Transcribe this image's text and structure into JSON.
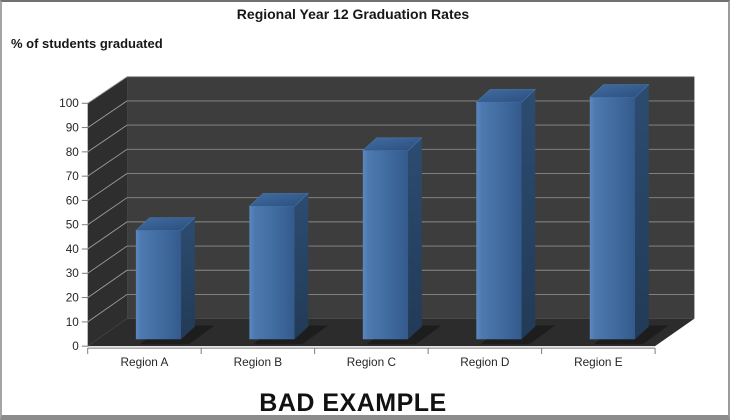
{
  "chart_data": {
    "type": "bar",
    "subtype": "3d-column",
    "title": "Regional Year 12 Graduation Rates",
    "ylabel": "% of students graduated",
    "caption": "BAD EXAMPLE",
    "categories": [
      "Region A",
      "Region B",
      "Region C",
      "Region D",
      "Region E"
    ],
    "values": [
      45,
      55,
      78,
      98,
      100
    ],
    "y_ticks": [
      0,
      10,
      20,
      30,
      40,
      50,
      60,
      70,
      80,
      90,
      100
    ],
    "ylim": [
      0,
      100
    ],
    "grid": true,
    "legend": "none",
    "colors": {
      "bar_front_light": "#5c87bf",
      "bar_front_mid": "#3f6a9e",
      "bar_front_dark": "#345a8c",
      "bar_top_light": "#416ca1",
      "bar_top_dark": "#2b4f7e",
      "bar_side_light": "#2c4c70",
      "bar_side_dark": "#223a57",
      "wall_back": "#3d3d3d",
      "wall_left": "#2e2e2e",
      "floor": "#2c2c2c",
      "gridline_back": "#8a8a8a",
      "gridline_left": "#a0a0a0",
      "axis_line": "#7a7a7a",
      "tick_label": "#262626"
    }
  }
}
